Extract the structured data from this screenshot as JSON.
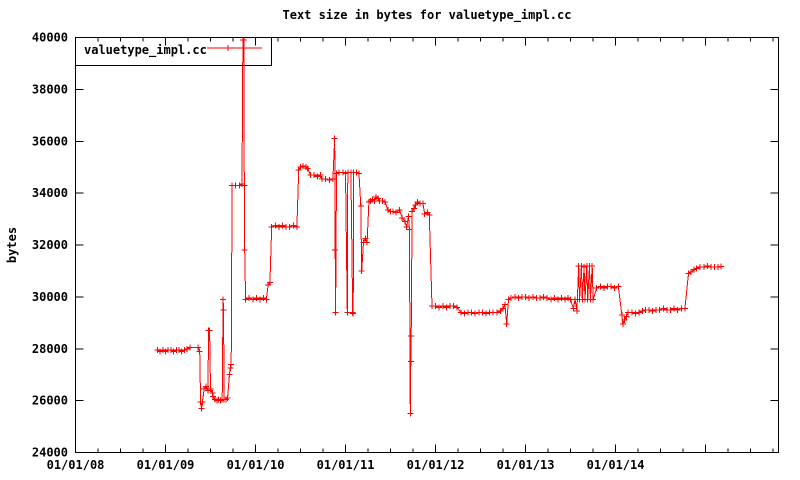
{
  "colors": {
    "series": "#ff0000",
    "axis": "#000000",
    "background": "#ffffff"
  },
  "legend": {
    "label": "valuetype_impl.cc",
    "position": "top-left",
    "boxed": true
  },
  "chart_data": {
    "type": "line",
    "style": "linespoints",
    "marker": "plus",
    "grid": false,
    "title": "Text size in bytes for valuetype_impl.cc",
    "xlabel": "",
    "ylabel": "bytes",
    "legend_position": "top-left",
    "x_range_years": [
      2008.0,
      2015.81
    ],
    "ylim": [
      24000,
      40000
    ],
    "y_ticks": [
      24000,
      26000,
      28000,
      30000,
      32000,
      34000,
      36000,
      38000,
      40000
    ],
    "y_tick_labels": [
      "24000",
      "26000",
      "28000",
      "30000",
      "32000",
      "34000",
      "36000",
      "38000",
      "40000"
    ],
    "x_tick_years": [
      2008,
      2009,
      2010,
      2011,
      2012,
      2013,
      2014
    ],
    "x_tick_labels": [
      "01/01/08",
      "01/01/09",
      "01/01/10",
      "01/01/11",
      "01/01/12",
      "01/01/13",
      "01/01/14"
    ],
    "x_minor_tick_interval_years": 0.25,
    "series": [
      {
        "name": "valuetype_impl.cc",
        "color": "#ff0000",
        "points": [
          [
            2008.91,
            27950
          ],
          [
            2008.94,
            27900
          ],
          [
            2008.97,
            27950
          ],
          [
            2009.0,
            27900
          ],
          [
            2009.03,
            27950
          ],
          [
            2009.06,
            27950
          ],
          [
            2009.09,
            27900
          ],
          [
            2009.12,
            27950
          ],
          [
            2009.15,
            27950
          ],
          [
            2009.18,
            27900
          ],
          [
            2009.21,
            27950
          ],
          [
            2009.24,
            28000
          ],
          [
            2009.27,
            28050
          ],
          [
            2009.36,
            28050
          ],
          [
            2009.38,
            27900
          ],
          [
            2009.39,
            25950
          ],
          [
            2009.4,
            25700
          ],
          [
            2009.41,
            25950
          ],
          [
            2009.43,
            26450
          ],
          [
            2009.45,
            26550
          ],
          [
            2009.47,
            26400
          ],
          [
            2009.48,
            28700
          ],
          [
            2009.49,
            28700
          ],
          [
            2009.5,
            26450
          ],
          [
            2009.52,
            26300
          ],
          [
            2009.53,
            26150
          ],
          [
            2009.55,
            26050
          ],
          [
            2009.57,
            26000
          ],
          [
            2009.59,
            26050
          ],
          [
            2009.61,
            26000
          ],
          [
            2009.63,
            26050
          ],
          [
            2009.64,
            29900
          ],
          [
            2009.645,
            29500
          ],
          [
            2009.65,
            26050
          ],
          [
            2009.67,
            26050
          ],
          [
            2009.69,
            26100
          ],
          [
            2009.71,
            27000
          ],
          [
            2009.72,
            27250
          ],
          [
            2009.73,
            27400
          ],
          [
            2009.74,
            34300
          ],
          [
            2009.78,
            34300
          ],
          [
            2009.82,
            34300
          ],
          [
            2009.85,
            34350
          ],
          [
            2009.86,
            39900
          ],
          [
            2009.87,
            39900
          ],
          [
            2009.875,
            34300
          ],
          [
            2009.88,
            31800
          ],
          [
            2009.89,
            29900
          ],
          [
            2009.93,
            29950
          ],
          [
            2009.97,
            29900
          ],
          [
            2010.01,
            29950
          ],
          [
            2010.05,
            29900
          ],
          [
            2010.09,
            29950
          ],
          [
            2010.12,
            29900
          ],
          [
            2010.14,
            30450
          ],
          [
            2010.16,
            30550
          ],
          [
            2010.18,
            32700
          ],
          [
            2010.22,
            32750
          ],
          [
            2010.26,
            32700
          ],
          [
            2010.3,
            32750
          ],
          [
            2010.34,
            32700
          ],
          [
            2010.38,
            32700
          ],
          [
            2010.42,
            32750
          ],
          [
            2010.46,
            32700
          ],
          [
            2010.48,
            34900
          ],
          [
            2010.5,
            35000
          ],
          [
            2010.53,
            35050
          ],
          [
            2010.56,
            35000
          ],
          [
            2010.58,
            34950
          ],
          [
            2010.61,
            34700
          ],
          [
            2010.65,
            34700
          ],
          [
            2010.69,
            34650
          ],
          [
            2010.72,
            34700
          ],
          [
            2010.74,
            34550
          ],
          [
            2010.78,
            34550
          ],
          [
            2010.82,
            34500
          ],
          [
            2010.86,
            34550
          ],
          [
            2010.88,
            36100
          ],
          [
            2010.885,
            31800
          ],
          [
            2010.89,
            29400
          ],
          [
            2010.9,
            34750
          ],
          [
            2010.93,
            34800
          ],
          [
            2010.97,
            34800
          ],
          [
            2011.0,
            34750
          ],
          [
            2011.02,
            29400
          ],
          [
            2011.025,
            34800
          ],
          [
            2011.06,
            34800
          ],
          [
            2011.08,
            29400
          ],
          [
            2011.085,
            29350
          ],
          [
            2011.09,
            34800
          ],
          [
            2011.12,
            34800
          ],
          [
            2011.15,
            34750
          ],
          [
            2011.17,
            33500
          ],
          [
            2011.18,
            31000
          ],
          [
            2011.2,
            32100
          ],
          [
            2011.22,
            32250
          ],
          [
            2011.24,
            32100
          ],
          [
            2011.26,
            33650
          ],
          [
            2011.28,
            33700
          ],
          [
            2011.3,
            33750
          ],
          [
            2011.32,
            33700
          ],
          [
            2011.34,
            33850
          ],
          [
            2011.36,
            33800
          ],
          [
            2011.38,
            33700
          ],
          [
            2011.41,
            33700
          ],
          [
            2011.44,
            33650
          ],
          [
            2011.47,
            33350
          ],
          [
            2011.5,
            33300
          ],
          [
            2011.53,
            33300
          ],
          [
            2011.56,
            33250
          ],
          [
            2011.6,
            33350
          ],
          [
            2011.63,
            33050
          ],
          [
            2011.66,
            32900
          ],
          [
            2011.68,
            32700
          ],
          [
            2011.7,
            33100
          ],
          [
            2011.71,
            32600
          ],
          [
            2011.72,
            25500
          ],
          [
            2011.725,
            27500
          ],
          [
            2011.73,
            28500
          ],
          [
            2011.74,
            33300
          ],
          [
            2011.76,
            33400
          ],
          [
            2011.78,
            33550
          ],
          [
            2011.8,
            33650
          ],
          [
            2011.83,
            33600
          ],
          [
            2011.86,
            33600
          ],
          [
            2011.88,
            33200
          ],
          [
            2011.91,
            33250
          ],
          [
            2011.93,
            33150
          ],
          [
            2011.96,
            29650
          ],
          [
            2012.0,
            29650
          ],
          [
            2012.04,
            29600
          ],
          [
            2012.08,
            29650
          ],
          [
            2012.12,
            29600
          ],
          [
            2012.16,
            29650
          ],
          [
            2012.2,
            29650
          ],
          [
            2012.24,
            29600
          ],
          [
            2012.28,
            29400
          ],
          [
            2012.32,
            29350
          ],
          [
            2012.36,
            29400
          ],
          [
            2012.4,
            29400
          ],
          [
            2012.44,
            29350
          ],
          [
            2012.48,
            29400
          ],
          [
            2012.52,
            29400
          ],
          [
            2012.56,
            29350
          ],
          [
            2012.6,
            29400
          ],
          [
            2012.64,
            29400
          ],
          [
            2012.68,
            29400
          ],
          [
            2012.72,
            29450
          ],
          [
            2012.75,
            29550
          ],
          [
            2012.77,
            29700
          ],
          [
            2012.79,
            28950
          ],
          [
            2012.81,
            29900
          ],
          [
            2012.84,
            29950
          ],
          [
            2012.88,
            30000
          ],
          [
            2012.92,
            29950
          ],
          [
            2012.96,
            30000
          ],
          [
            2013.0,
            30000
          ],
          [
            2013.04,
            29950
          ],
          [
            2013.08,
            30000
          ],
          [
            2013.12,
            29950
          ],
          [
            2013.16,
            29950
          ],
          [
            2013.2,
            30000
          ],
          [
            2013.24,
            29950
          ],
          [
            2013.28,
            29900
          ],
          [
            2013.32,
            29950
          ],
          [
            2013.36,
            29900
          ],
          [
            2013.4,
            29950
          ],
          [
            2013.44,
            29900
          ],
          [
            2013.47,
            29950
          ],
          [
            2013.5,
            29900
          ],
          [
            2013.53,
            29550
          ],
          [
            2013.55,
            29900
          ],
          [
            2013.57,
            29450
          ],
          [
            2013.59,
            31200
          ],
          [
            2013.6,
            29900
          ],
          [
            2013.62,
            31200
          ],
          [
            2013.63,
            29900
          ],
          [
            2013.65,
            31150
          ],
          [
            2013.66,
            29900
          ],
          [
            2013.68,
            31200
          ],
          [
            2013.69,
            29900
          ],
          [
            2013.71,
            31200
          ],
          [
            2013.72,
            29900
          ],
          [
            2013.74,
            31200
          ],
          [
            2013.75,
            29900
          ],
          [
            2013.79,
            30350
          ],
          [
            2013.83,
            30400
          ],
          [
            2013.87,
            30350
          ],
          [
            2013.91,
            30400
          ],
          [
            2013.95,
            30400
          ],
          [
            2013.99,
            30350
          ],
          [
            2014.03,
            30400
          ],
          [
            2014.07,
            29300
          ],
          [
            2014.08,
            28950
          ],
          [
            2014.1,
            29100
          ],
          [
            2014.12,
            29250
          ],
          [
            2014.14,
            29400
          ],
          [
            2014.18,
            29400
          ],
          [
            2014.22,
            29350
          ],
          [
            2014.26,
            29400
          ],
          [
            2014.3,
            29450
          ],
          [
            2014.33,
            29500
          ],
          [
            2014.37,
            29500
          ],
          [
            2014.41,
            29450
          ],
          [
            2014.45,
            29500
          ],
          [
            2014.49,
            29500
          ],
          [
            2014.53,
            29550
          ],
          [
            2014.57,
            29500
          ],
          [
            2014.61,
            29500
          ],
          [
            2014.65,
            29550
          ],
          [
            2014.69,
            29500
          ],
          [
            2014.73,
            29550
          ],
          [
            2014.77,
            29550
          ],
          [
            2014.81,
            30900
          ],
          [
            2014.84,
            30950
          ],
          [
            2014.87,
            31050
          ],
          [
            2014.9,
            31100
          ],
          [
            2014.94,
            31150
          ],
          [
            2014.98,
            31150
          ],
          [
            2015.02,
            31200
          ],
          [
            2015.06,
            31150
          ],
          [
            2015.1,
            31150
          ],
          [
            2015.14,
            31150
          ],
          [
            2015.17,
            31170
          ]
        ]
      }
    ]
  }
}
